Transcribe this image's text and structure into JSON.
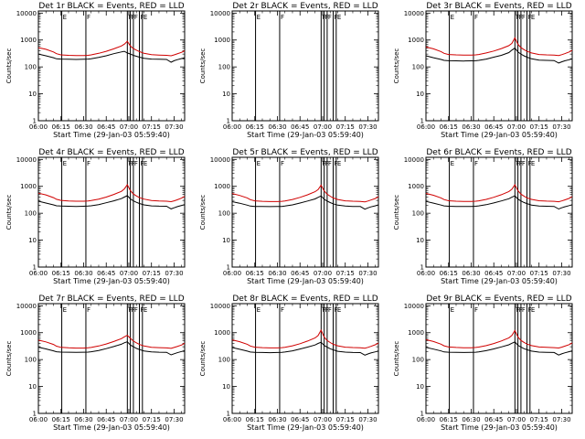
{
  "chart_data": {
    "type": "line",
    "grid": false,
    "xlabel": "Start Time (29-Jan-03 05:59:40)",
    "ylabel": "Counts/sec",
    "xlim_minutes": [
      0,
      97
    ],
    "x_tick_labels": [
      "06:00",
      "06:15",
      "06:30",
      "06:45",
      "07:00",
      "07:15",
      "07:30"
    ],
    "ylim": [
      1,
      12000
    ],
    "y_tick_labels": [
      "1",
      "10",
      "100",
      "1000",
      "10000"
    ],
    "marker_lines_minutes": [
      15.5,
      31.5,
      59,
      61,
      63,
      67,
      69
    ],
    "marker_flags": [
      "E",
      "F",
      "F",
      "F",
      "F",
      "F",
      "E"
    ],
    "series_names": [
      "Events (BLACK)",
      "LLD (RED)"
    ],
    "x_minutes": [
      0,
      5,
      10,
      12,
      15,
      20,
      25,
      30,
      33,
      35,
      40,
      45,
      50,
      55,
      57,
      59,
      61,
      63,
      65,
      67,
      70,
      75,
      80,
      85,
      88,
      90,
      92,
      95,
      97
    ],
    "panels": [
      {
        "title": "Det 1r BLACK = Events, RED = LLD",
        "has_data": true,
        "series": [
          {
            "name": "Events",
            "color": "#000000",
            "values": [
              300,
              260,
              220,
              200,
              195,
              192,
              190,
              192,
              195,
              200,
              225,
              260,
              310,
              360,
              380,
              330,
              300,
              270,
              250,
              230,
              210,
              195,
              192,
              190,
              150,
              170,
              185,
              205,
              220
            ]
          },
          {
            "name": "LLD",
            "color": "#d00000",
            "values": [
              520,
              450,
              360,
              310,
              280,
              270,
              265,
              265,
              270,
              280,
              320,
              380,
              470,
              600,
              700,
              900,
              600,
              480,
              420,
              370,
              320,
              285,
              275,
              270,
              260,
              280,
              305,
              350,
              400
            ]
          }
        ]
      },
      {
        "title": "Det 2r BLACK = Events, RED = LLD",
        "has_data": false,
        "series": []
      },
      {
        "title": "Det 3r BLACK = Events, RED = LLD",
        "has_data": true,
        "series": [
          {
            "name": "Events",
            "color": "#000000",
            "values": [
              260,
              220,
              190,
              175,
              170,
              168,
              166,
              168,
              170,
              175,
              195,
              230,
              270,
              340,
              420,
              500,
              360,
              300,
              260,
              230,
              200,
              180,
              175,
              172,
              140,
              155,
              168,
              185,
              200
            ]
          },
          {
            "name": "LLD",
            "color": "#d00000",
            "values": [
              550,
              470,
              370,
              320,
              290,
              280,
              275,
              275,
              280,
              290,
              330,
              390,
              480,
              620,
              750,
              1200,
              700,
              520,
              440,
              380,
              330,
              290,
              280,
              275,
              265,
              285,
              310,
              360,
              410
            ]
          }
        ]
      },
      {
        "title": "Det 4r BLACK = Events, RED = LLD",
        "has_data": true,
        "series": [
          {
            "name": "Events",
            "color": "#000000",
            "values": [
              280,
              240,
              205,
              190,
              185,
              182,
              180,
              182,
              185,
              190,
              210,
              245,
              290,
              350,
              400,
              450,
              340,
              290,
              255,
              230,
              205,
              188,
              184,
              182,
              145,
              160,
              175,
              195,
              210
            ]
          },
          {
            "name": "LLD",
            "color": "#d00000",
            "values": [
              560,
              480,
              380,
              330,
              300,
              285,
              280,
              280,
              285,
              295,
              335,
              400,
              500,
              650,
              800,
              1150,
              700,
              520,
              440,
              380,
              335,
              295,
              285,
              280,
              270,
              290,
              315,
              365,
              420
            ]
          }
        ]
      },
      {
        "title": "Det 5r BLACK = Events, RED = LLD",
        "has_data": true,
        "series": [
          {
            "name": "Events",
            "color": "#000000",
            "values": [
              270,
              235,
              200,
              185,
              180,
              178,
              176,
              178,
              180,
              185,
              205,
              240,
              285,
              340,
              390,
              440,
              330,
              285,
              250,
              225,
              200,
              185,
              180,
              178,
              142,
              158,
              172,
              190,
              205
            ]
          },
          {
            "name": "LLD",
            "color": "#d00000",
            "values": [
              540,
              460,
              370,
              320,
              290,
              278,
              272,
              272,
              278,
              288,
              325,
              390,
              485,
              630,
              760,
              1100,
              680,
              510,
              430,
              370,
              325,
              290,
              280,
              275,
              265,
              285,
              310,
              355,
              410
            ]
          }
        ]
      },
      {
        "title": "Det 6r BLACK = Events, RED = LLD",
        "has_data": true,
        "series": [
          {
            "name": "Events",
            "color": "#000000",
            "values": [
              275,
              238,
              202,
              188,
              182,
              180,
              178,
              180,
              182,
              188,
              208,
              242,
              288,
              345,
              395,
              445,
              335,
              288,
              252,
              228,
              202,
              187,
              182,
              180,
              144,
              160,
              174,
              192,
              208
            ]
          },
          {
            "name": "LLD",
            "color": "#d00000",
            "values": [
              545,
              465,
              372,
              322,
              292,
              280,
              274,
              274,
              280,
              290,
              328,
              392,
              490,
              640,
              780,
              1150,
              690,
              515,
              435,
              375,
              328,
              292,
              282,
              277,
              267,
              287,
              312,
              358,
              415
            ]
          }
        ]
      },
      {
        "title": "Det 7r BLACK = Events, RED = LLD",
        "has_data": true,
        "series": [
          {
            "name": "Events",
            "color": "#000000",
            "values": [
              290,
              250,
              212,
              196,
              190,
              188,
              186,
              188,
              190,
              196,
              218,
              255,
              305,
              370,
              420,
              460,
              350,
              300,
              262,
              236,
              210,
              193,
              188,
              186,
              150,
              165,
              180,
              200,
              215
            ]
          },
          {
            "name": "LLD",
            "color": "#d00000",
            "values": [
              530,
              455,
              365,
              315,
              285,
              273,
              268,
              268,
              273,
              283,
              320,
              380,
              470,
              600,
              700,
              800,
              620,
              490,
              420,
              365,
              320,
              287,
              277,
              272,
              262,
              282,
              306,
              350,
              405
            ]
          }
        ]
      },
      {
        "title": "Det 8r BLACK = Events, RED = LLD",
        "has_data": true,
        "series": [
          {
            "name": "Events",
            "color": "#000000",
            "values": [
              280,
              242,
              206,
              191,
              185,
              183,
              181,
              183,
              185,
              191,
              211,
              247,
              292,
              350,
              400,
              440,
              336,
              290,
              254,
              230,
              204,
              189,
              184,
              182,
              146,
              162,
              176,
              194,
              210
            ]
          },
          {
            "name": "LLD",
            "color": "#d00000",
            "values": [
              540,
              462,
              370,
              320,
              290,
              278,
              272,
              272,
              278,
              288,
              326,
              390,
              488,
              636,
              780,
              1250,
              690,
              512,
              432,
              372,
              326,
              290,
              280,
              275,
              265,
              285,
              310,
              356,
              412
            ]
          }
        ]
      },
      {
        "title": "Det 9r BLACK = Events, RED = LLD",
        "has_data": true,
        "series": [
          {
            "name": "Events",
            "color": "#000000",
            "values": [
              285,
              246,
              209,
              193,
              188,
              186,
              184,
              186,
              188,
              193,
              214,
              250,
              296,
              355,
              405,
              450,
              340,
              292,
              256,
              232,
              206,
              190,
              186,
              184,
              148,
              163,
              178,
              197,
              212
            ]
          },
          {
            "name": "LLD",
            "color": "#d00000",
            "values": [
              548,
              468,
              374,
              324,
              294,
              282,
              276,
              276,
              282,
              292,
              330,
              395,
              492,
              642,
              790,
              1200,
              695,
              518,
              438,
              378,
              330,
              294,
              284,
              279,
              269,
              289,
              314,
              360,
              418
            ]
          }
        ]
      }
    ]
  }
}
